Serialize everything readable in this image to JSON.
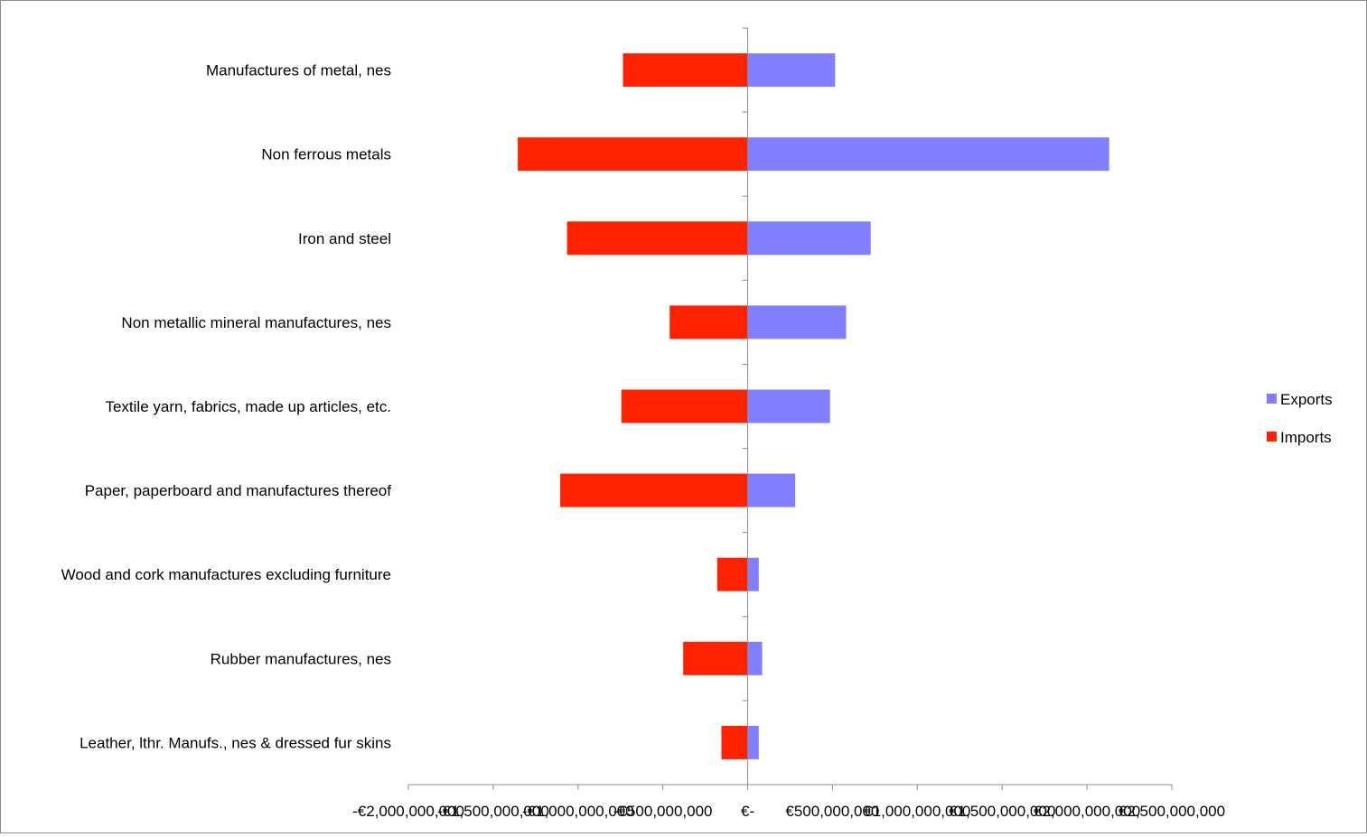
{
  "chart_data": {
    "type": "bar",
    "orientation": "horizontal",
    "title": "",
    "xlabel": "",
    "ylabel": "",
    "categories": [
      "Manufactures of metal, nes",
      "Non ferrous metals",
      "Iron and steel",
      "Non metallic mineral manufactures, nes",
      "Textile yarn, fabrics, made up articles, etc.",
      "Paper, paperboard and manufactures thereof",
      "Wood and cork manufactures excluding furniture",
      "Rubber manufactures, nes",
      "Leather, lthr. Manufs., nes & dressed fur skins"
    ],
    "series": [
      {
        "name": "Exports",
        "color": "#7f7fff",
        "values": [
          515000000,
          2130000000,
          725000000,
          580000000,
          485000000,
          280000000,
          65000000,
          85000000,
          65000000
        ]
      },
      {
        "name": "Imports",
        "color": "#ff2200",
        "values": [
          -735000000,
          -1355000000,
          -1065000000,
          -460000000,
          -745000000,
          -1105000000,
          -180000000,
          -380000000,
          -155000000
        ]
      }
    ],
    "xlim": [
      -2000000000,
      2500000000
    ],
    "x_ticks": [
      -2000000000,
      -1500000000,
      -1000000000,
      -500000000,
      0,
      500000000,
      1000000000,
      1500000000,
      2000000000,
      2500000000
    ],
    "x_tick_labels": [
      "-€2,000,000,000",
      "-€1,500,000,000",
      "-€1,000,000,000",
      "-€500,000,000",
      "€-",
      "€500,000,000",
      "€1,000,000,000",
      "€1,500,000,000",
      "€2,000,000,000",
      "€2,500,000,000"
    ],
    "grid": false,
    "legend_position": "right"
  }
}
